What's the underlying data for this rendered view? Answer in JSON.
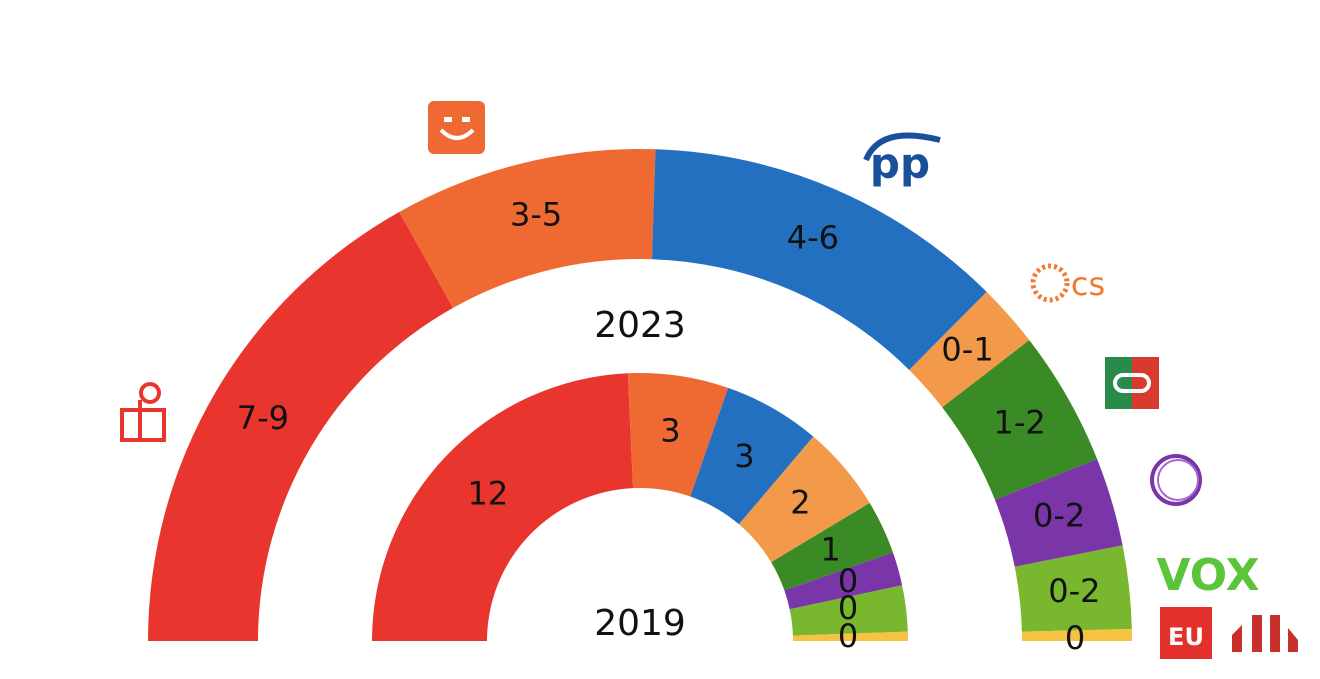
{
  "chart_data": {
    "type": "pie",
    "subtype": "semicircle-donut",
    "rings": [
      {
        "year_label": "2023",
        "segments": [
          {
            "party": "PSOE",
            "value": "7-9",
            "color": "#e8362f"
          },
          {
            "party": "Más Madrid / Compromís",
            "value": "3-5",
            "color": "#ef6a33"
          },
          {
            "party": "PP",
            "value": "4-6",
            "color": "#2370c0"
          },
          {
            "party": "Cs",
            "value": "0-1",
            "color": "#f29a49"
          },
          {
            "party": "Coalición",
            "value": "1-2",
            "color": "#3a8a25"
          },
          {
            "party": "Podemos",
            "value": "0-2",
            "color": "#7a35a8"
          },
          {
            "party": "VOX",
            "value": "0-2",
            "color": "#79b72e"
          },
          {
            "party": "Others",
            "value": "0",
            "color": "#f5c242"
          }
        ]
      },
      {
        "year_label": "2019",
        "segments": [
          {
            "party": "PSOE",
            "value": "12",
            "color": "#e8362f"
          },
          {
            "party": "Más Madrid / Compromís",
            "value": "3",
            "color": "#ef6a33"
          },
          {
            "party": "PP",
            "value": "3",
            "color": "#2370c0"
          },
          {
            "party": "Cs",
            "value": "2",
            "color": "#f29a49"
          },
          {
            "party": "Coalición",
            "value": "1",
            "color": "#3a8a25"
          },
          {
            "party": "Podemos",
            "value": "0",
            "color": "#7a35a8"
          },
          {
            "party": "VOX",
            "value": "0",
            "color": "#79b72e"
          },
          {
            "party": "Others",
            "value": "0",
            "color": "#f5c242"
          }
        ]
      }
    ]
  },
  "logos": {
    "pp": "pp",
    "cs": "cs",
    "vox": "VOX"
  }
}
